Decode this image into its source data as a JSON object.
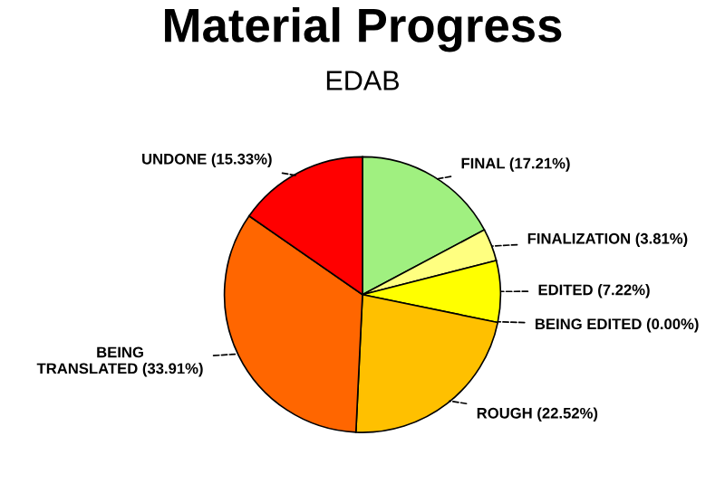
{
  "chart_data": {
    "type": "pie",
    "title": "Material Progress",
    "subtitle": "EDAB",
    "categories": [
      "FINAL",
      "FINALIZATION",
      "EDITED",
      "BEING EDITED",
      "ROUGH",
      "BEING TRANSLATED",
      "UNDONE"
    ],
    "values": [
      17.21,
      3.81,
      7.22,
      0.0,
      22.52,
      33.91,
      15.33
    ],
    "value_labels": [
      "(17.21%)",
      "(3.81%)",
      "(7.22%)",
      "(0.00%)",
      "(22.52%)",
      "(33.91%)",
      "(15.33%)"
    ],
    "colors": [
      "#a0f080",
      "#ffff80",
      "#ffff00",
      "#ffd700",
      "#ffc000",
      "#ff6600",
      "#ff0000"
    ]
  }
}
